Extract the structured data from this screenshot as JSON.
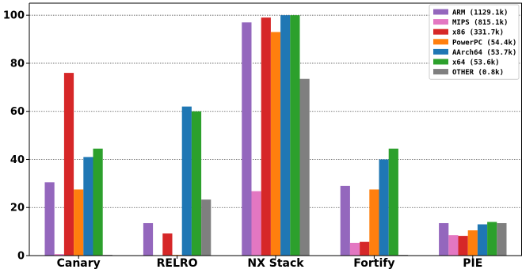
{
  "chart_data": {
    "type": "bar",
    "title": "",
    "xlabel": "",
    "ylabel": "",
    "ylim": [
      0,
      100
    ],
    "yticks": [
      0,
      20,
      40,
      60,
      80,
      100
    ],
    "grid": true,
    "legend_position": "top-right",
    "categories": [
      "Canary",
      "RELRO",
      "NX Stack",
      "Fortify",
      "PIE"
    ],
    "series": [
      {
        "name": "ARM (1129.1k)",
        "color": "#9467bd",
        "values": [
          30.5,
          13.5,
          97,
          29,
          13.5
        ]
      },
      {
        "name": "MIPS (815.1k)",
        "color": "#e377c2",
        "values": [
          0.6,
          0,
          26.8,
          5.3,
          8.5
        ]
      },
      {
        "name": "x86 (331.7k)",
        "color": "#d62728",
        "values": [
          76,
          9.2,
          99,
          5.7,
          8.2
        ]
      },
      {
        "name": "PowerPC (54.4k)",
        "color": "#ff7f0e",
        "values": [
          27.5,
          0.3,
          93,
          27.5,
          10.5
        ]
      },
      {
        "name": "AArch64 (53.7k)",
        "color": "#1f77b4",
        "values": [
          41,
          62,
          100,
          40,
          13
        ]
      },
      {
        "name": "x64 (53.6k)",
        "color": "#2ca02c",
        "values": [
          44.5,
          60,
          100,
          44.5,
          14
        ]
      },
      {
        "name": "OTHER (0.8k)",
        "color": "#7f7f7f",
        "values": [
          0.3,
          23.3,
          73.5,
          0.3,
          13.5
        ]
      }
    ]
  }
}
